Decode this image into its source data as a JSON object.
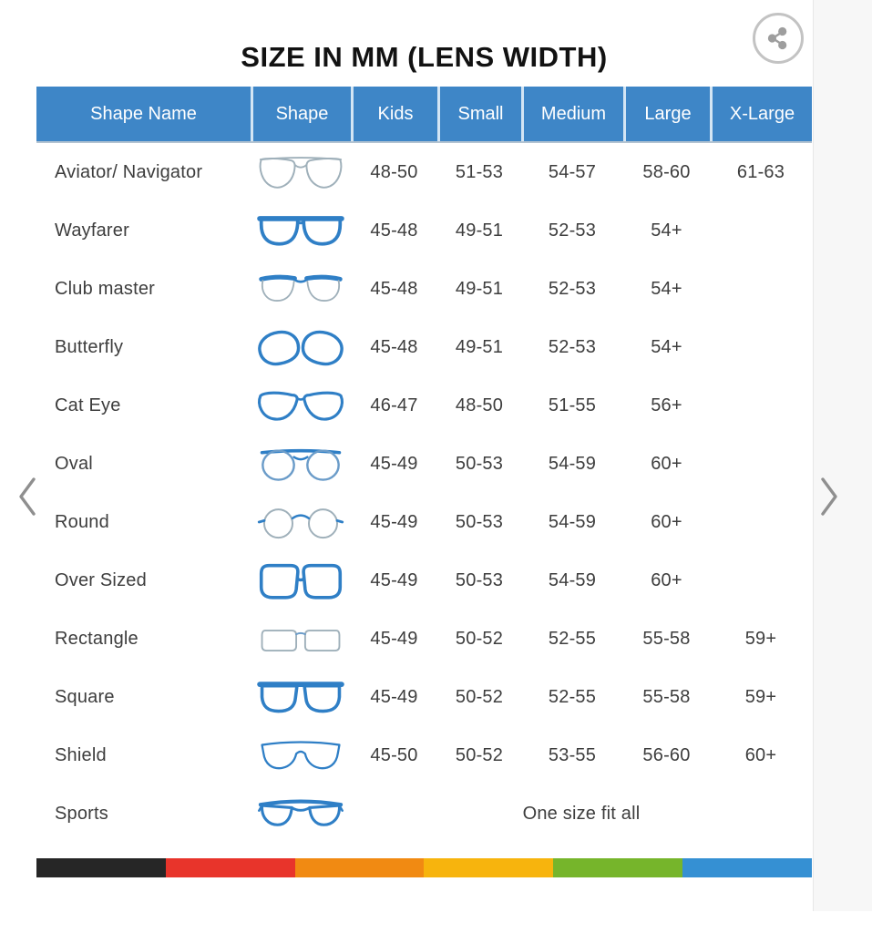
{
  "page": {
    "title": "SIZE IN MM (LENS WIDTH)"
  },
  "colors": {
    "header_bg": "#3e86c7",
    "header_text": "#ffffff",
    "header_divider": "#d3e5f4",
    "body_text": "#3d3d3d",
    "icon_blue": "#2f7fc6",
    "icon_gray": "#9fb0ba",
    "icon_mid": "#6b9cc9",
    "share_gray": "#9e9e9e",
    "chevron_gray": "#8f8f8f",
    "footer_bar": [
      "#262626",
      "#e8342b",
      "#f18a12",
      "#f7b40d",
      "#76b52b",
      "#3590d3"
    ]
  },
  "table": {
    "columns": [
      "Shape Name",
      "Shape",
      "Kids",
      "Small",
      "Medium",
      "Large",
      "X-Large"
    ],
    "rows": [
      {
        "name": "Aviator/ Navigator",
        "icon": "aviator-navigator-icon",
        "sizes": [
          "48-50",
          "51-53",
          "54-57",
          "58-60",
          "61-63"
        ]
      },
      {
        "name": "Wayfarer",
        "icon": "wayfarer-icon",
        "sizes": [
          "45-48",
          "49-51",
          "52-53",
          "54+",
          ""
        ]
      },
      {
        "name": "Club master",
        "icon": "club-master-icon",
        "sizes": [
          "45-48",
          "49-51",
          "52-53",
          "54+",
          ""
        ]
      },
      {
        "name": "Butterfly",
        "icon": "butterfly-icon",
        "sizes": [
          "45-48",
          "49-51",
          "52-53",
          "54+",
          ""
        ]
      },
      {
        "name": "Cat Eye",
        "icon": "cat-eye-icon",
        "sizes": [
          "46-47",
          "48-50",
          "51-55",
          "56+",
          ""
        ]
      },
      {
        "name": "Oval",
        "icon": "oval-icon",
        "sizes": [
          "45-49",
          "50-53",
          "54-59",
          "60+",
          ""
        ]
      },
      {
        "name": "Round",
        "icon": "round-icon",
        "sizes": [
          "45-49",
          "50-53",
          "54-59",
          "60+",
          ""
        ]
      },
      {
        "name": "Over Sized",
        "icon": "over-sized-icon",
        "sizes": [
          "45-49",
          "50-53",
          "54-59",
          "60+",
          ""
        ]
      },
      {
        "name": "Rectangle",
        "icon": "rectangle-icon",
        "sizes": [
          "45-49",
          "50-52",
          "52-55",
          "55-58",
          "59+"
        ]
      },
      {
        "name": "Square",
        "icon": "square-icon",
        "sizes": [
          "45-49",
          "50-52",
          "52-55",
          "55-58",
          "59+"
        ]
      },
      {
        "name": "Shield",
        "icon": "shield-icon",
        "sizes": [
          "45-50",
          "50-52",
          "53-55",
          "56-60",
          "60+"
        ]
      },
      {
        "name": "Sports",
        "icon": "sports-icon",
        "span_text": "One size fit all"
      }
    ]
  }
}
